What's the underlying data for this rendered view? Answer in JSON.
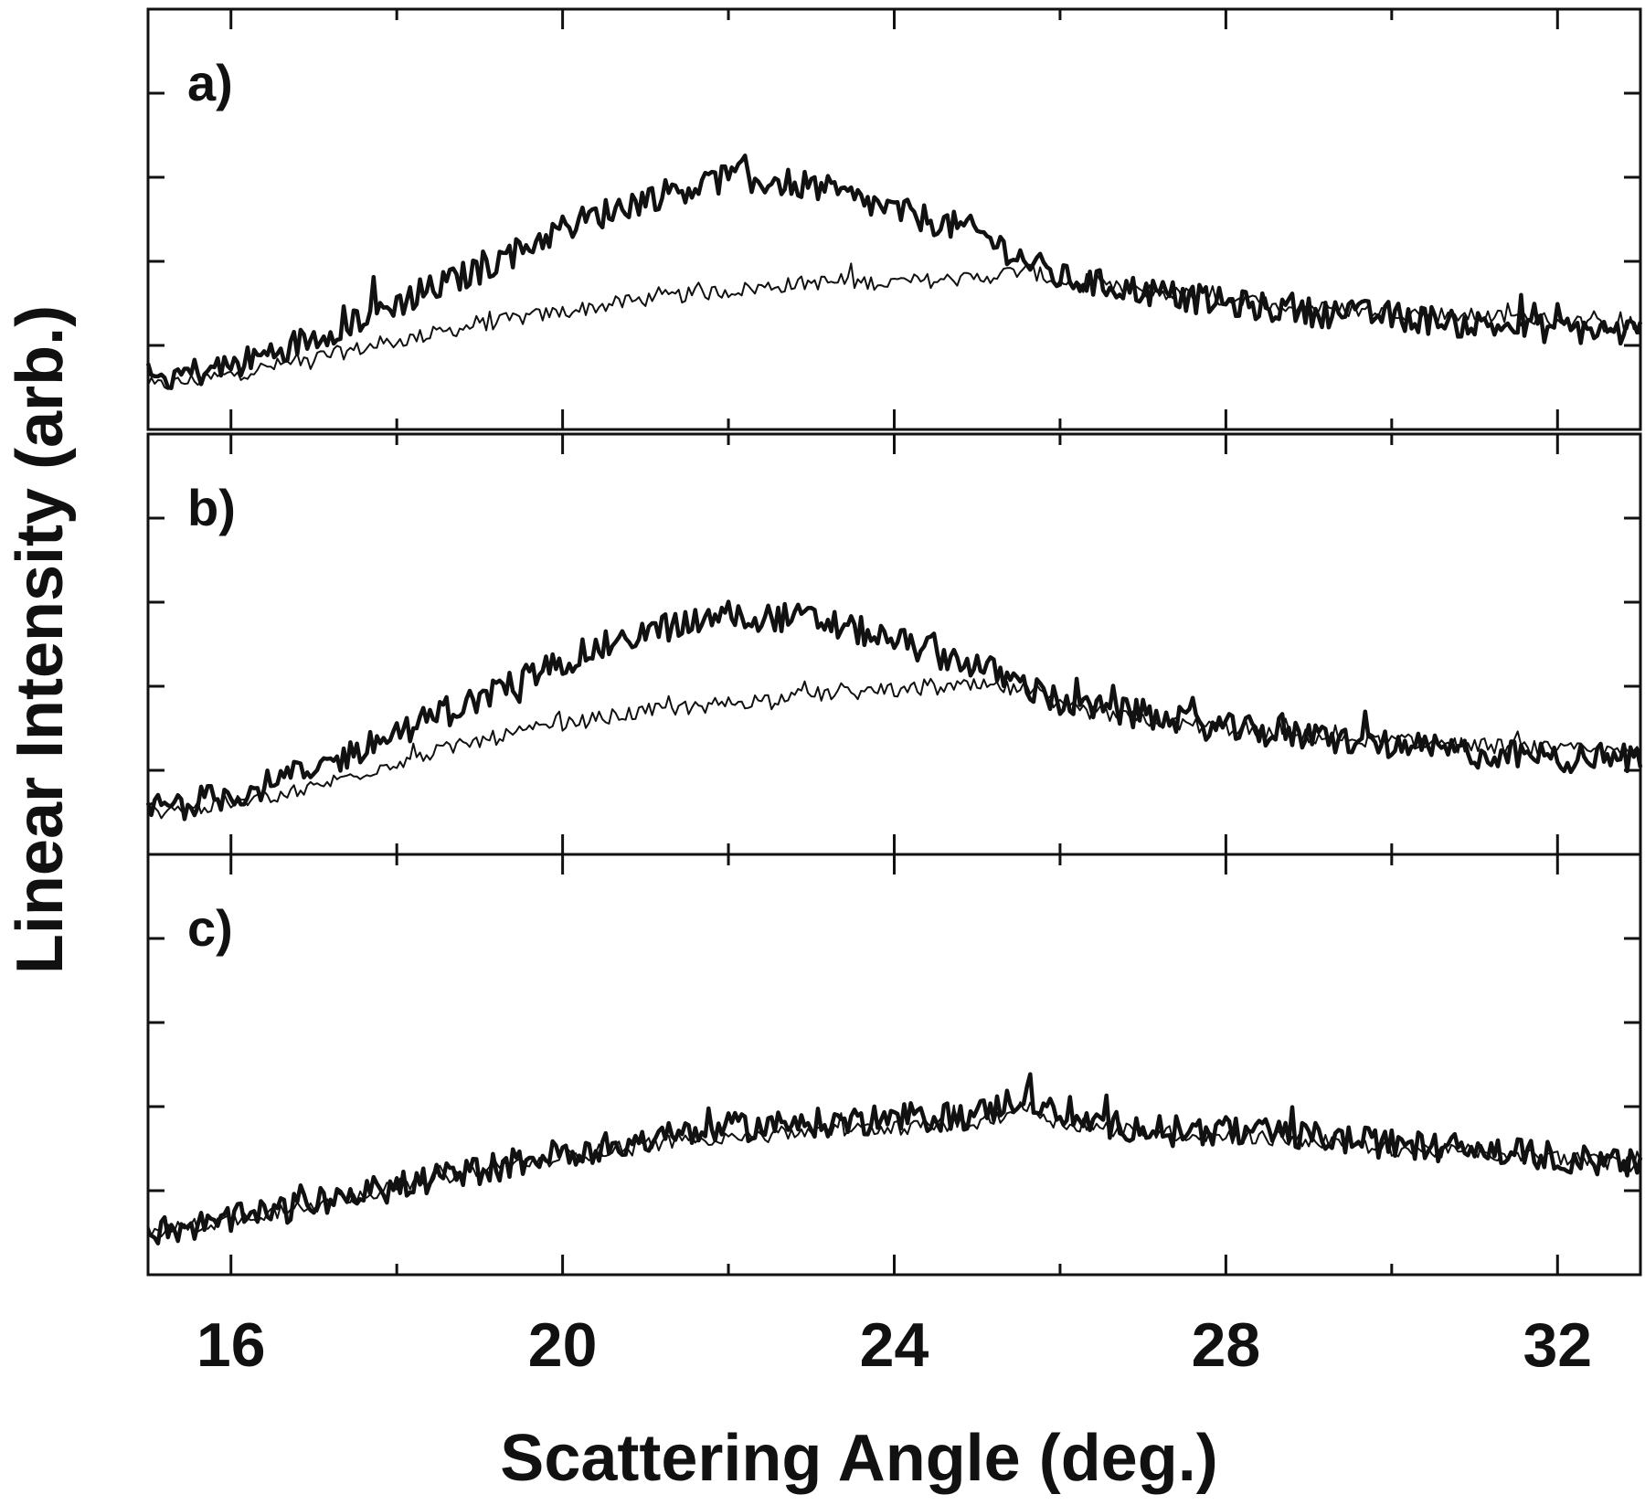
{
  "chart_data": {
    "type": "line",
    "xlabel": "Scattering Angle (deg.)",
    "ylabel": "Linear Intensity (arb.)",
    "xlim": [
      15,
      33
    ],
    "ylim": [
      0,
      1
    ],
    "x_ticks": [
      16,
      20,
      24,
      28,
      32
    ],
    "grid": false,
    "legend": "none",
    "panels": [
      {
        "label": "a)",
        "series": [
          {
            "style": "thick",
            "x": [
              15,
              16,
              17,
              18,
              19,
              20,
              21,
              22,
              23,
              24,
              25,
              25.6,
              26,
              27,
              28,
              29,
              30,
              31,
              32,
              33
            ],
            "y": [
              0.12,
              0.15,
              0.22,
              0.3,
              0.38,
              0.48,
              0.55,
              0.6,
              0.58,
              0.52,
              0.47,
              0.4,
              0.36,
              0.33,
              0.3,
              0.28,
              0.27,
              0.25,
              0.24,
              0.23
            ]
          },
          {
            "style": "thin",
            "x": [
              15,
              16,
              17,
              18,
              19,
              20,
              21,
              22,
              23,
              24,
              25,
              25.6,
              26,
              27,
              28,
              29,
              30,
              31,
              32,
              33
            ],
            "y": [
              0.1,
              0.13,
              0.17,
              0.21,
              0.25,
              0.28,
              0.31,
              0.33,
              0.35,
              0.35,
              0.36,
              0.38,
              0.35,
              0.33,
              0.31,
              0.29,
              0.28,
              0.27,
              0.26,
              0.24
            ]
          }
        ]
      },
      {
        "label": "b)",
        "series": [
          {
            "style": "thick",
            "x": [
              15,
              16,
              17,
              18,
              19,
              20,
              21,
              22,
              23,
              24,
              25,
              25.6,
              26,
              27,
              28,
              29,
              30,
              31,
              32,
              33
            ],
            "y": [
              0.11,
              0.14,
              0.2,
              0.29,
              0.37,
              0.46,
              0.53,
              0.57,
              0.56,
              0.51,
              0.45,
              0.4,
              0.36,
              0.33,
              0.3,
              0.28,
              0.26,
              0.24,
              0.23,
              0.23
            ]
          },
          {
            "style": "thin",
            "x": [
              15,
              16,
              17,
              18,
              19,
              20,
              21,
              22,
              23,
              24,
              25,
              25.6,
              26,
              27,
              28,
              29,
              30,
              31,
              32,
              33
            ],
            "y": [
              0.1,
              0.12,
              0.16,
              0.22,
              0.27,
              0.31,
              0.34,
              0.36,
              0.38,
              0.39,
              0.4,
              0.39,
              0.35,
              0.32,
              0.3,
              0.28,
              0.27,
              0.26,
              0.25,
              0.24
            ]
          }
        ]
      },
      {
        "label": "c)",
        "series": [
          {
            "style": "thick",
            "x": [
              15,
              16,
              17,
              18,
              19,
              20,
              21,
              22,
              23,
              24,
              25,
              25.6,
              26,
              27,
              28,
              29,
              30,
              31,
              32,
              33
            ],
            "y": [
              0.1,
              0.13,
              0.17,
              0.21,
              0.25,
              0.29,
              0.32,
              0.35,
              0.36,
              0.37,
              0.38,
              0.43,
              0.37,
              0.35,
              0.34,
              0.33,
              0.31,
              0.3,
              0.28,
              0.26
            ]
          },
          {
            "style": "thin",
            "x": [
              15,
              16,
              17,
              18,
              19,
              20,
              21,
              22,
              23,
              24,
              25,
              25.6,
              26,
              27,
              28,
              29,
              30,
              31,
              32,
              33
            ],
            "y": [
              0.1,
              0.13,
              0.17,
              0.21,
              0.25,
              0.28,
              0.31,
              0.33,
              0.34,
              0.35,
              0.36,
              0.4,
              0.36,
              0.34,
              0.33,
              0.32,
              0.3,
              0.29,
              0.28,
              0.26
            ]
          }
        ]
      }
    ]
  }
}
